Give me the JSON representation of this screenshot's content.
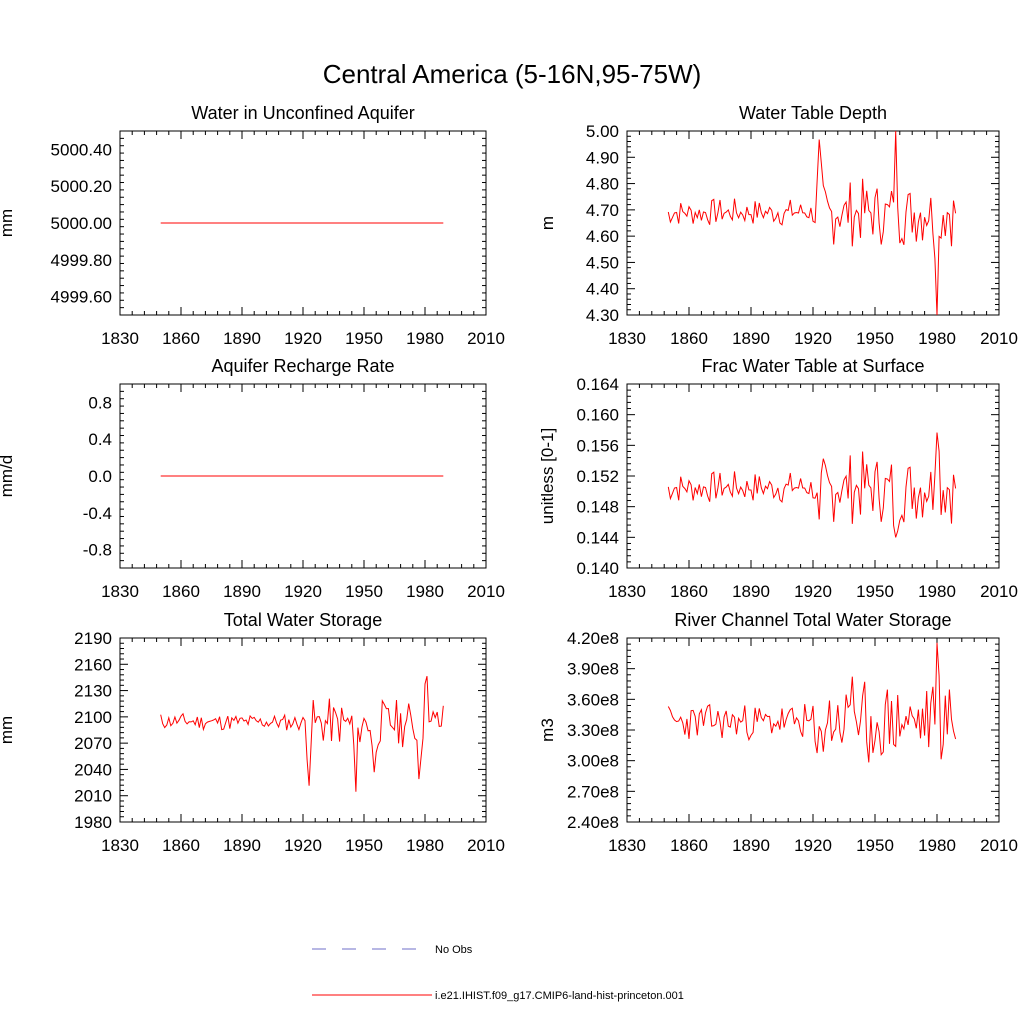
{
  "title": "Central America (5-16N,95-75W)",
  "colors": {
    "model": "#ff0000",
    "obs": "#6f6fc8",
    "axis": "#000000"
  },
  "legend": [
    {
      "label": "No Obs",
      "style": "dashed",
      "color": "#6f6fc8"
    },
    {
      "label": "i.e21.IHIST.f09_g17.CMIP6-land-hist-princeton.001",
      "style": "solid",
      "color": "#ff0000"
    }
  ],
  "x_years": {
    "start": 1850,
    "end": 1989
  },
  "chart_data": [
    {
      "type": "line",
      "title": "Water in Unconfined Aquifer",
      "ylabel": "mm",
      "xlim": [
        1830,
        2010
      ],
      "ylim": [
        4999.5,
        5000.5
      ],
      "xticks": [
        1830,
        1860,
        1890,
        1920,
        1950,
        1980,
        2010
      ],
      "yticks": [
        4999.6,
        4999.8,
        5000.0,
        5000.2,
        5000.4
      ],
      "ytick_labels": [
        "4999.60",
        "4999.80",
        "5000.00",
        "5000.20",
        "5000.40"
      ],
      "series": [
        {
          "base": 5000.0,
          "noise": 0,
          "noise_phase": 0,
          "trend": 0,
          "amp": 0,
          "sharp": 1,
          "seed": 0
        }
      ]
    },
    {
      "type": "line",
      "title": "Water Table Depth",
      "ylabel": "m",
      "xlim": [
        1830,
        2010
      ],
      "ylim": [
        4.3,
        5.0
      ],
      "xticks": [
        1830,
        1860,
        1890,
        1920,
        1950,
        1980,
        2010
      ],
      "yticks": [
        4.3,
        4.4,
        4.5,
        4.6,
        4.7,
        4.8,
        4.9,
        5.0
      ],
      "ytick_labels": [
        "4.30",
        "4.40",
        "4.50",
        "4.60",
        "4.70",
        "4.80",
        "4.90",
        "5.00"
      ],
      "series": [
        {
          "base": 4.69,
          "noise": 0.055,
          "noise_phase": 0.1,
          "trend": 0,
          "amp": 2.4,
          "sharp": 1.6,
          "seed": 7,
          "peaks": [
            [
              1980,
              -0.3
            ],
            [
              1960,
              0.25
            ],
            [
              1923,
              0.2
            ]
          ]
        }
      ]
    },
    {
      "type": "line",
      "title": "Aquifer Recharge Rate",
      "ylabel": "mm/d",
      "xlim": [
        1830,
        2010
      ],
      "ylim": [
        -1.0,
        1.0
      ],
      "xticks": [
        1830,
        1860,
        1890,
        1920,
        1950,
        1980,
        2010
      ],
      "yticks": [
        -0.8,
        -0.4,
        0.0,
        0.4,
        0.8
      ],
      "ytick_labels": [
        "-0.8",
        "-0.4",
        "0.0",
        "0.4",
        "0.8"
      ],
      "series": [
        {
          "base": 0.0,
          "noise": 0,
          "noise_phase": 0,
          "trend": 0,
          "amp": 0,
          "sharp": 1,
          "seed": 0
        }
      ]
    },
    {
      "type": "line",
      "title": "Frac Water Table at Surface",
      "ylabel": "unitless [0-1]",
      "xlim": [
        1830,
        2010
      ],
      "ylim": [
        0.14,
        0.164
      ],
      "xticks": [
        1830,
        1860,
        1890,
        1920,
        1950,
        1980,
        2010
      ],
      "yticks": [
        0.14,
        0.144,
        0.148,
        0.152,
        0.156,
        0.16,
        0.164
      ],
      "ytick_labels": [
        "0.140",
        "0.144",
        "0.148",
        "0.152",
        "0.156",
        "0.160",
        "0.164"
      ],
      "series": [
        {
          "base": 0.1505,
          "noise": 0.0022,
          "noise_phase": 0.1,
          "trend": 0,
          "amp": 2.2,
          "sharp": 1.6,
          "seed": 7,
          "peaks": [
            [
              1980,
              0.012
            ],
            [
              1960,
              -0.009
            ],
            [
              1923,
              -0.007
            ]
          ]
        }
      ]
    },
    {
      "type": "line",
      "title": "Total Water Storage",
      "ylabel": "mm",
      "xlim": [
        1830,
        2010
      ],
      "ylim": [
        1980,
        2190
      ],
      "xticks": [
        1830,
        1860,
        1890,
        1920,
        1950,
        1980,
        2010
      ],
      "yticks": [
        1980,
        2010,
        2040,
        2070,
        2100,
        2130,
        2160,
        2190
      ],
      "ytick_labels": [
        "1980",
        "2010",
        "2040",
        "2070",
        "2100",
        "2130",
        "2160",
        "2190"
      ],
      "series": [
        {
          "base": 2095,
          "noise": 10,
          "noise_phase": 0.4,
          "trend": -0.02,
          "amp": 2.8,
          "sharp": 1.4,
          "seed": 11,
          "peaks": [
            [
              1946,
              -80
            ],
            [
              1977,
              -55
            ],
            [
              1981,
              70
            ],
            [
              1923,
              -50
            ],
            [
              1955,
              -65
            ]
          ]
        }
      ]
    },
    {
      "type": "line",
      "title": "River Channel Total Water Storage",
      "ylabel": "m3",
      "xlim": [
        1830,
        2010
      ],
      "ylim": [
        240000000.0,
        420000000.0
      ],
      "xticks": [
        1830,
        1860,
        1890,
        1920,
        1950,
        1980,
        2010
      ],
      "yticks": [
        240000000.0,
        270000000.0,
        300000000.0,
        330000000.0,
        360000000.0,
        390000000.0,
        420000000.0
      ],
      "ytick_labels": [
        "2.40e8",
        "2.70e8",
        "3.00e8",
        "3.30e8",
        "3.60e8",
        "3.90e8",
        "4.20e8"
      ],
      "series": [
        {
          "base": 338000000.0,
          "noise": 18000000.0,
          "noise_phase": 0.2,
          "trend": 0,
          "amp": 2.2,
          "sharp": 1.3,
          "seed": 23,
          "peaks": [
            [
              1980,
              72000000.0
            ],
            [
              1947,
              -75000000.0
            ],
            [
              1939,
              50000000.0
            ],
            [
              1922,
              -55000000.0
            ]
          ]
        }
      ]
    }
  ]
}
